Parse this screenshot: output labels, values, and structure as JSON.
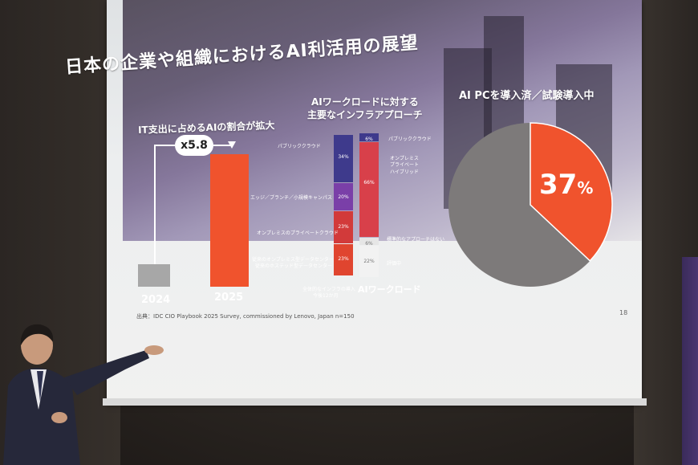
{
  "slide": {
    "title": "日本の企業や組織におけるAI利活用の展望",
    "page_number": "18",
    "source": "出典：IDC CIO Playbook 2025 Survey, commissioned by Lenovo, Japan n=150"
  },
  "chart_it_spend": {
    "subtitle": "IT支出に占めるAIの割合が拡大",
    "multiplier": "x5.8",
    "bars": [
      {
        "label": "2024",
        "value": 1,
        "color": "#a7a7a7"
      },
      {
        "label": "2025",
        "value": 5.8,
        "color": "#f0532d"
      }
    ]
  },
  "chart_infra": {
    "subtitle_line1": "AIワークロードに対する",
    "subtitle_line2": "主要なインフラアプローチ",
    "left_stack_caption_1": "全体的なインフラの導入",
    "left_stack_caption_2": "今後12か月",
    "right_stack_caption": "AIワークロード",
    "left_labels": [
      "パブリッククラウド",
      "エッジ／ブランチ／小規模キャンパス",
      "オンプレミスのプライベートクラウド",
      "従来のオンプレミス型データセンター",
      "従来のホステッド型データセンター"
    ],
    "right_labels": [
      "パブリッククラウド",
      "オンプレミス",
      "プライベート",
      "ハイブリッド",
      "標準的なアプローチはない",
      "評価中"
    ],
    "left_segments": [
      {
        "pct": "34%",
        "color": "#3e3a8c"
      },
      {
        "pct": "20%",
        "color": "#7a3fa8"
      },
      {
        "pct": "23%",
        "color": "#d23a3a"
      },
      {
        "pct": "23%",
        "color": "#e0452f"
      }
    ],
    "right_segments": [
      {
        "pct": "6%",
        "color": "#3e3a8c"
      },
      {
        "pct": "66%",
        "color": "#d8404a"
      },
      {
        "pct": "6%",
        "color": "#e6e6e6"
      },
      {
        "pct": "22%",
        "color": "#f2f2f2"
      }
    ]
  },
  "chart_ai_pc": {
    "subtitle": "AI PCを導入済／試験導入中",
    "value_number": "37",
    "value_unit": "%",
    "fraction": 0.37,
    "colors": {
      "highlight": "#f0532d",
      "rest": "#7d7a7a"
    }
  }
}
